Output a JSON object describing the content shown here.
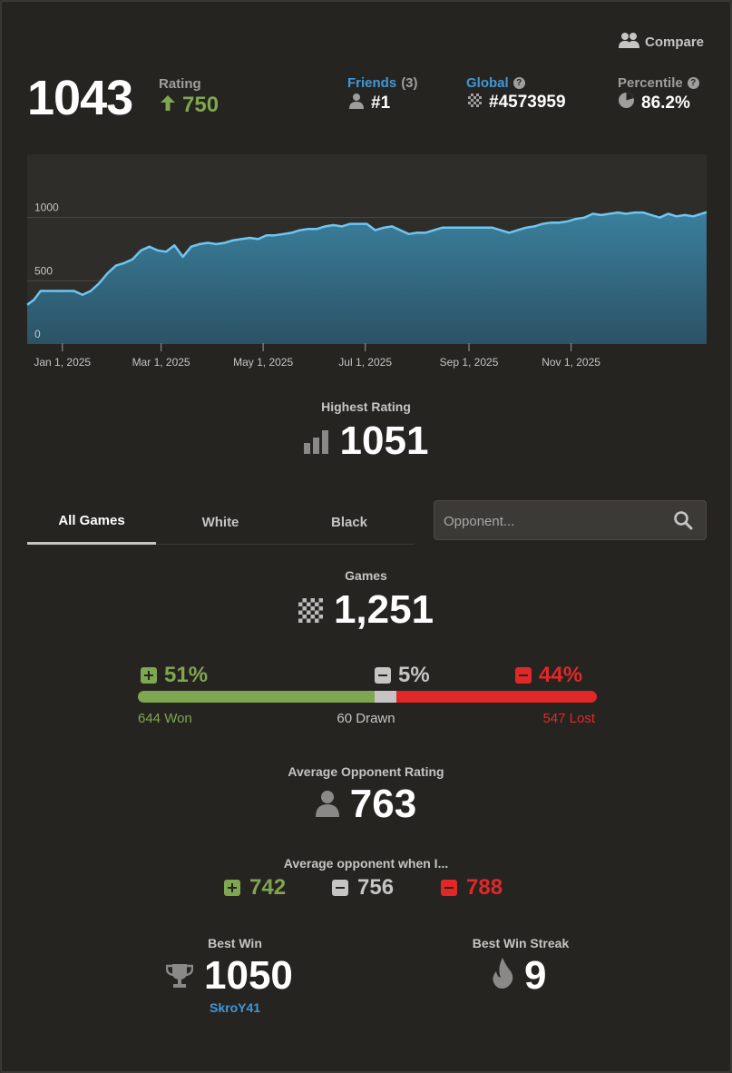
{
  "compare_label": "Compare",
  "rating": {
    "value": "1043",
    "label": "Rating",
    "change": "750"
  },
  "friends": {
    "label": "Friends",
    "count": "(3)",
    "rank": "#1"
  },
  "global": {
    "label": "Global",
    "rank": "#4573959"
  },
  "percentile": {
    "label": "Percentile",
    "value": "86.2%"
  },
  "chart_data": {
    "type": "area",
    "x_tick_labels": [
      "Jan 1, 2025",
      "Mar 1, 2025",
      "May 1, 2025",
      "Jul 1, 2025",
      "Sep 1, 2025",
      "Nov 1, 2025"
    ],
    "y_tick_labels": [
      "0",
      "500",
      "1000"
    ],
    "ylim": [
      0,
      1500
    ],
    "grid": true,
    "x_label": "",
    "y_label": "",
    "series": [
      {
        "x": [
          "2024-12-11",
          "2024-12-15",
          "2024-12-19",
          "2024-12-24",
          "2024-12-29",
          "2025-01-03",
          "2025-01-08",
          "2025-01-13",
          "2025-01-18",
          "2025-01-23",
          "2025-01-28",
          "2025-02-02",
          "2025-02-07",
          "2025-02-12",
          "2025-02-17",
          "2025-02-22",
          "2025-02-27",
          "2025-03-04",
          "2025-03-09",
          "2025-03-14",
          "2025-03-19",
          "2025-03-24",
          "2025-03-29",
          "2025-04-03",
          "2025-04-08",
          "2025-04-13",
          "2025-04-18",
          "2025-04-23",
          "2025-04-28",
          "2025-05-03",
          "2025-05-08",
          "2025-05-13",
          "2025-05-18",
          "2025-05-23",
          "2025-05-28",
          "2025-06-02",
          "2025-06-07",
          "2025-06-12",
          "2025-06-17",
          "2025-06-22",
          "2025-06-27",
          "2025-07-02",
          "2025-07-07",
          "2025-07-12",
          "2025-07-17",
          "2025-07-22",
          "2025-07-27",
          "2025-08-01",
          "2025-08-06",
          "2025-08-11",
          "2025-08-16",
          "2025-08-21",
          "2025-08-26",
          "2025-08-31",
          "2025-09-05",
          "2025-09-10",
          "2025-09-15",
          "2025-09-20",
          "2025-09-25",
          "2025-09-30",
          "2025-10-05",
          "2025-10-10",
          "2025-10-15",
          "2025-10-20",
          "2025-10-25",
          "2025-10-30",
          "2025-11-04",
          "2025-11-09",
          "2025-11-14",
          "2025-11-19",
          "2025-11-24",
          "2025-11-29",
          "2025-12-04",
          "2025-12-09",
          "2025-12-14",
          "2025-12-19",
          "2025-12-24",
          "2025-12-29",
          "2026-01-03",
          "2026-01-08",
          "2026-01-13",
          "2026-01-18",
          "2026-01-21"
        ],
        "y": [
          310,
          350,
          420,
          420,
          420,
          420,
          420,
          390,
          420,
          480,
          560,
          620,
          640,
          670,
          740,
          770,
          740,
          730,
          780,
          690,
          770,
          790,
          800,
          790,
          800,
          820,
          830,
          840,
          830,
          860,
          860,
          870,
          880,
          900,
          910,
          910,
          930,
          940,
          930,
          950,
          950,
          950,
          900,
          920,
          930,
          900,
          870,
          880,
          880,
          900,
          920,
          920,
          920,
          920,
          920,
          920,
          920,
          900,
          880,
          900,
          920,
          930,
          950,
          960,
          960,
          970,
          990,
          1000,
          1030,
          1020,
          1030,
          1040,
          1030,
          1040,
          1040,
          1020,
          1000,
          1030,
          1010,
          1020,
          1010,
          1030,
          1043
        ]
      }
    ]
  },
  "highest_rating": {
    "label": "Highest Rating",
    "value": "1051"
  },
  "tabs": [
    "All Games",
    "White",
    "Black"
  ],
  "opponent_search": {
    "placeholder": "Opponent..."
  },
  "games": {
    "label": "Games",
    "value": "1,251"
  },
  "results": {
    "won_pct": "51%",
    "drawn_pct": "5%",
    "lost_pct": "44%",
    "won": "644 Won",
    "drawn": "60 Drawn",
    "lost": "547 Lost",
    "won_fraction": 0.515,
    "drawn_fraction": 0.048,
    "lost_fraction": 0.437
  },
  "avg_opponent": {
    "label": "Average Opponent Rating",
    "value": "763"
  },
  "avg_when": {
    "label": "Average opponent when I...",
    "won": "742",
    "drawn": "756",
    "lost": "788"
  },
  "best_win": {
    "label": "Best Win",
    "value": "1050",
    "opponent": "SkroY41"
  },
  "best_streak": {
    "label": "Best Win Streak",
    "value": "9"
  },
  "colors": {
    "win": "#7fa650",
    "draw": "#c6c5c4",
    "loss": "#e02828",
    "link": "#4098d7",
    "line": "#6ec6f2"
  }
}
